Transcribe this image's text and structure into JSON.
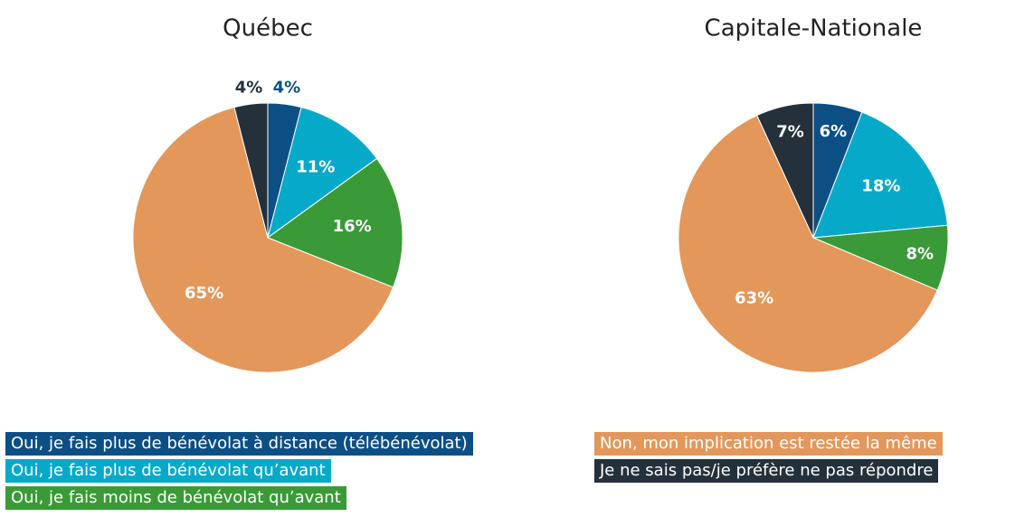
{
  "chart_data": [
    {
      "type": "pie",
      "title": "Québec",
      "categories": [
        "Oui, je fais plus de bénévolat à distance (télébénévolat)",
        "Oui, je fais plus de bénévolat qu’avant",
        "Oui, je fais moins de bénévolat qu’avant",
        "Non, mon implication est restée la même",
        "Je ne sais pas/je préfère ne pas répondre"
      ],
      "values": [
        4,
        11,
        16,
        65,
        4
      ],
      "value_labels": [
        "4%",
        "11%",
        "16%",
        "65%",
        "4%"
      ],
      "colors": [
        "#0b4f85",
        "#07a9c9",
        "#3a9a37",
        "#e3975a",
        "#24313b"
      ]
    },
    {
      "type": "pie",
      "title": "Capitale-Nationale",
      "categories": [
        "Oui, je fais plus de bénévolat à distance (télébénévolat)",
        "Oui, je fais plus de bénévolat qu’avant",
        "Oui, je fais moins de bénévolat qu’avant",
        "Non, mon implication est restée la même",
        "Je ne sais pas/je préfère ne pas répondre"
      ],
      "values": [
        6,
        18,
        8,
        63,
        7
      ],
      "value_labels": [
        "6%",
        "18%",
        "8%",
        "63%",
        "7%"
      ],
      "colors": [
        "#0b4f85",
        "#07a9c9",
        "#3a9a37",
        "#e3975a",
        "#24313b"
      ]
    }
  ]
}
